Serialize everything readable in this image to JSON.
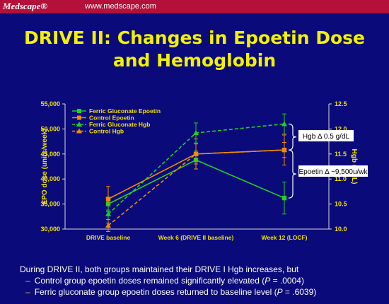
{
  "header": {
    "logo": "Medscape®",
    "url": "www.medscape.com"
  },
  "title_line1": "DRIVE II: Changes in Epoetin Dose",
  "title_line2": "and Hemoglobin",
  "chart_data": {
    "type": "line",
    "categories": [
      "DRIVE baseline",
      "Week 6 (DRIVE II baseline)",
      "Week 12 (LOCF)"
    ],
    "ylabel": "EPO dose (units/week)",
    "y2label": "Hgb (g/dL)",
    "ylim": [
      30000,
      55000
    ],
    "y2lim": [
      10.0,
      12.5
    ],
    "yticks": [
      "30,000",
      "35,000",
      "40,000",
      "45,000",
      "50,000",
      "55,000"
    ],
    "y2ticks": [
      "10.0",
      "10.5",
      "11.0",
      "11.5",
      "12.0",
      "12.5"
    ],
    "legend_position": "top-left",
    "series": [
      {
        "name": "Ferric Gluconate Epoetin",
        "axis": "left",
        "color": "#22d022",
        "style": "solid",
        "marker": "square",
        "values": [
          35000,
          43800,
          36200
        ],
        "err": [
          1200,
          1800,
          3200
        ]
      },
      {
        "name": "Control Epoetin",
        "axis": "left",
        "color": "#f08c00",
        "style": "solid",
        "marker": "square",
        "values": [
          36000,
          45000,
          45800
        ],
        "err": [
          2500,
          3000,
          3000
        ]
      },
      {
        "name": "Ferric Gluconate Hgb",
        "axis": "right",
        "color": "#22d022",
        "style": "dashed",
        "marker": "triangle",
        "values": [
          10.3,
          11.92,
          12.1
        ],
        "err": [
          0.18,
          0.2,
          0.2
        ]
      },
      {
        "name": "Control Hgb",
        "axis": "right",
        "color": "#f08c00",
        "style": "dashed",
        "marker": "triangle",
        "values": [
          10.07,
          11.5,
          11.58
        ],
        "err": [
          0.12,
          0.2,
          0.15
        ]
      }
    ],
    "annotations": [
      {
        "text": "Hgb Δ 0.5 g/dL"
      },
      {
        "text": "Epoetin Δ ~9,500u/wk"
      }
    ]
  },
  "caption": {
    "main": "During DRIVE II, both groups maintained their DRIVE I Hgb increases, but",
    "bullet_char": "–",
    "b1_a": "Control group epoetin doses remained significantly elevated (",
    "b1_p": "P",
    "b1_b": " = .0004)",
    "b2_a": "Ferric gluconate group epoetin doses returned to baseline level (",
    "b2_p": "P",
    "b2_b": " = .6039)"
  }
}
